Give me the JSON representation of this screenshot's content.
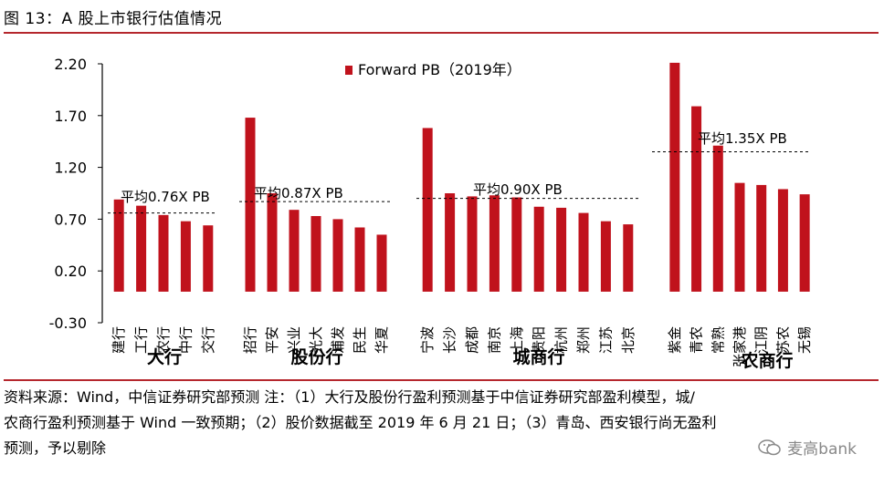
{
  "figure": {
    "title": "图 13：A 股上市银行估值情况"
  },
  "notes": {
    "line1": "资料来源：Wind，中信证券研究部预测   注：（1）大行及股份行盈利预测基于中信证券研究部盈利模型，城/",
    "line2": "农商行盈利预测基于 Wind 一致预期；（2）股价数据截至 2019 年 6 月 21 日；（3）青岛、西安银行尚无盈利",
    "line3": "预测，予以剔除"
  },
  "watermark": {
    "text": "麦高bank"
  },
  "colors": {
    "bar": "#c0121c",
    "rule": "#b5272d",
    "avg_line": "#000000"
  },
  "chart_data": {
    "type": "bar",
    "title": "",
    "xlabel": "",
    "ylabel": "",
    "legend": {
      "label": "Forward PB（2019年）",
      "position": "top"
    },
    "ylim": [
      -0.3,
      2.2
    ],
    "yticks": [
      "2.20",
      "1.70",
      "1.20",
      "0.70",
      "0.20",
      "-0.30"
    ],
    "ytick_values": [
      2.2,
      1.7,
      1.2,
      0.7,
      0.2,
      -0.3
    ],
    "grid": false,
    "groups": [
      {
        "name": "大行",
        "categories": [
          "建行",
          "工行",
          "农行",
          "中行",
          "交行"
        ],
        "values": [
          0.89,
          0.83,
          0.74,
          0.68,
          0.64
        ],
        "average": {
          "value": 0.76,
          "label": "平均0.76X PB"
        }
      },
      {
        "name": "股份行",
        "categories": [
          "招行",
          "平安",
          "兴业",
          "光大",
          "浦发",
          "民生",
          "华夏"
        ],
        "values": [
          1.68,
          0.95,
          0.79,
          0.73,
          0.7,
          0.62,
          0.55
        ],
        "average": {
          "value": 0.87,
          "label": "平均0.87X PB"
        }
      },
      {
        "name": "城商行",
        "categories": [
          "宁波",
          "长沙",
          "成都",
          "南京",
          "上海",
          "贵阳",
          "杭州",
          "郑州",
          "江苏",
          "北京"
        ],
        "values": [
          1.58,
          0.95,
          0.92,
          0.93,
          0.91,
          0.82,
          0.81,
          0.76,
          0.68,
          0.65
        ],
        "average": {
          "value": 0.9,
          "label": "平均0.90X PB"
        }
      },
      {
        "name": "农商行",
        "categories": [
          "紫金",
          "青农",
          "常熟",
          "张家港",
          "江阴",
          "苏农",
          "无锡"
        ],
        "values": [
          2.21,
          1.79,
          1.41,
          1.05,
          1.03,
          0.99,
          0.94
        ],
        "average": {
          "value": 1.35,
          "label": "平均1.35X PB"
        }
      }
    ]
  }
}
